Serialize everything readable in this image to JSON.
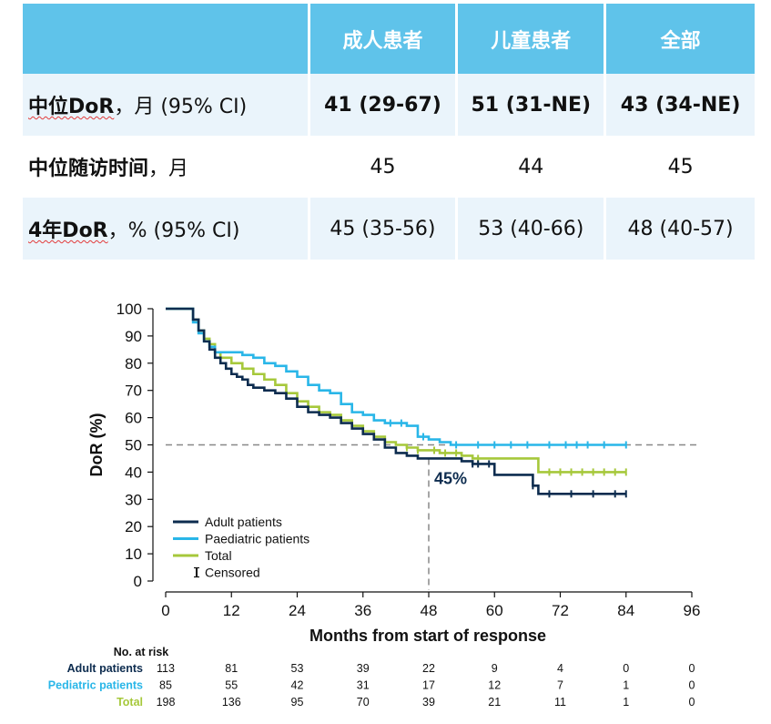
{
  "table": {
    "headers": [
      "",
      "成人患者",
      "儿童患者",
      "全部"
    ],
    "rows": [
      {
        "label_bold": "中位DoR",
        "label_rest": "，月 (95% CI)",
        "values": [
          "41 (29-67)",
          "51 (31-NE)",
          "43 (34-NE)"
        ],
        "bold_values": true
      },
      {
        "label_bold": "中位随访时间",
        "label_rest": "，月",
        "values": [
          "45",
          "44",
          "45"
        ],
        "bold_values": false
      },
      {
        "label_bold": "4年DoR",
        "label_rest": "，% (95% CI)",
        "values": [
          "45 (35-56)",
          "53 (40-66)",
          "48 (40-57)"
        ],
        "bold_values": false
      }
    ],
    "colors": {
      "header_bg": "#5fc3ea",
      "row_shade": "#eaf4fb"
    }
  },
  "chart_data": {
    "type": "line",
    "xlabel": "Months from start of response",
    "ylabel": "DoR (%)",
    "xlim": [
      0,
      96
    ],
    "ylim": [
      0,
      100
    ],
    "xticks": [
      0,
      12,
      24,
      36,
      48,
      60,
      72,
      84,
      96
    ],
    "yticks": [
      0,
      10,
      20,
      30,
      40,
      50,
      60,
      70,
      80,
      90,
      100
    ],
    "reference_line_y": 50,
    "reference_line_x": 48,
    "annotation": "45%",
    "legend": {
      "position": "bottom-left",
      "censored_label": "Censored"
    },
    "series": [
      {
        "name": "Adult patients",
        "color": "#0d2c4f",
        "x": [
          0,
          4,
          5,
          6,
          7,
          8,
          9,
          10,
          11,
          12,
          13,
          14,
          15,
          16,
          17,
          18,
          20,
          22,
          24,
          26,
          28,
          30,
          32,
          34,
          36,
          38,
          40,
          42,
          44,
          46,
          48,
          52,
          54,
          56,
          58,
          60,
          62,
          64,
          66,
          67,
          68,
          72,
          76,
          80,
          84
        ],
        "y": [
          100,
          100,
          96,
          92,
          88,
          85,
          82,
          80,
          78,
          76,
          75,
          74,
          72,
          71,
          71,
          70,
          69,
          67,
          64,
          62,
          61,
          60,
          58,
          56,
          54,
          52,
          49,
          47,
          46,
          45,
          45,
          45,
          44,
          43,
          43,
          39,
          39,
          39,
          39,
          35,
          32,
          32,
          32,
          32,
          32
        ],
        "censored_x": [
          56,
          57,
          59,
          67,
          70,
          74,
          78,
          82,
          84
        ]
      },
      {
        "name": "Paediatric patients",
        "color": "#29b6e8",
        "x": [
          0,
          4,
          5,
          6,
          7,
          8,
          9,
          10,
          12,
          14,
          16,
          18,
          20,
          22,
          24,
          26,
          28,
          30,
          32,
          34,
          36,
          38,
          40,
          42,
          44,
          46,
          48,
          50,
          52,
          56,
          60,
          64,
          68,
          72,
          76,
          80,
          84
        ],
        "y": [
          100,
          100,
          95,
          91,
          88,
          86,
          84,
          84,
          84,
          83,
          82,
          80,
          79,
          77,
          75,
          72,
          70,
          69,
          65,
          62,
          61,
          59,
          58,
          58,
          57,
          53,
          52,
          51,
          50,
          50,
          50,
          50,
          50,
          50,
          50,
          50,
          50
        ],
        "censored_x": [
          41,
          43,
          47,
          53,
          57,
          60,
          63,
          66,
          70,
          73,
          75,
          77,
          80,
          84
        ]
      },
      {
        "name": "Total",
        "color": "#a6c83b",
        "x": [
          0,
          4,
          5,
          6,
          7,
          8,
          9,
          10,
          12,
          14,
          16,
          18,
          20,
          22,
          24,
          26,
          28,
          30,
          32,
          34,
          36,
          38,
          40,
          42,
          44,
          46,
          48,
          50,
          54,
          56,
          58,
          60,
          62,
          64,
          66,
          68,
          72,
          76,
          80,
          84
        ],
        "y": [
          100,
          100,
          96,
          92,
          89,
          87,
          84,
          82,
          80,
          78,
          76,
          74,
          72,
          69,
          66,
          64,
          62,
          61,
          59,
          57,
          55,
          53,
          51,
          50,
          49,
          48,
          48,
          47,
          46,
          45,
          45,
          45,
          45,
          45,
          45,
          40,
          40,
          40,
          40,
          40
        ],
        "censored_x": [
          44,
          46,
          49,
          51,
          53,
          57,
          70,
          72,
          74,
          76,
          78,
          80,
          82,
          84
        ]
      }
    ],
    "at_risk": {
      "title": "No. at risk",
      "times": [
        0,
        12,
        24,
        36,
        48,
        60,
        72,
        84,
        96
      ],
      "rows": [
        {
          "label": "Adult patients",
          "color": "#0d2c4f",
          "values": [
            113,
            81,
            53,
            39,
            22,
            9,
            4,
            0,
            0
          ]
        },
        {
          "label": "Pediatric patients",
          "color": "#29b6e8",
          "values": [
            85,
            55,
            42,
            31,
            17,
            12,
            7,
            1,
            0
          ]
        },
        {
          "label": "Total",
          "color": "#a6c83b",
          "values": [
            198,
            136,
            95,
            70,
            39,
            21,
            11,
            1,
            0
          ]
        }
      ]
    }
  }
}
